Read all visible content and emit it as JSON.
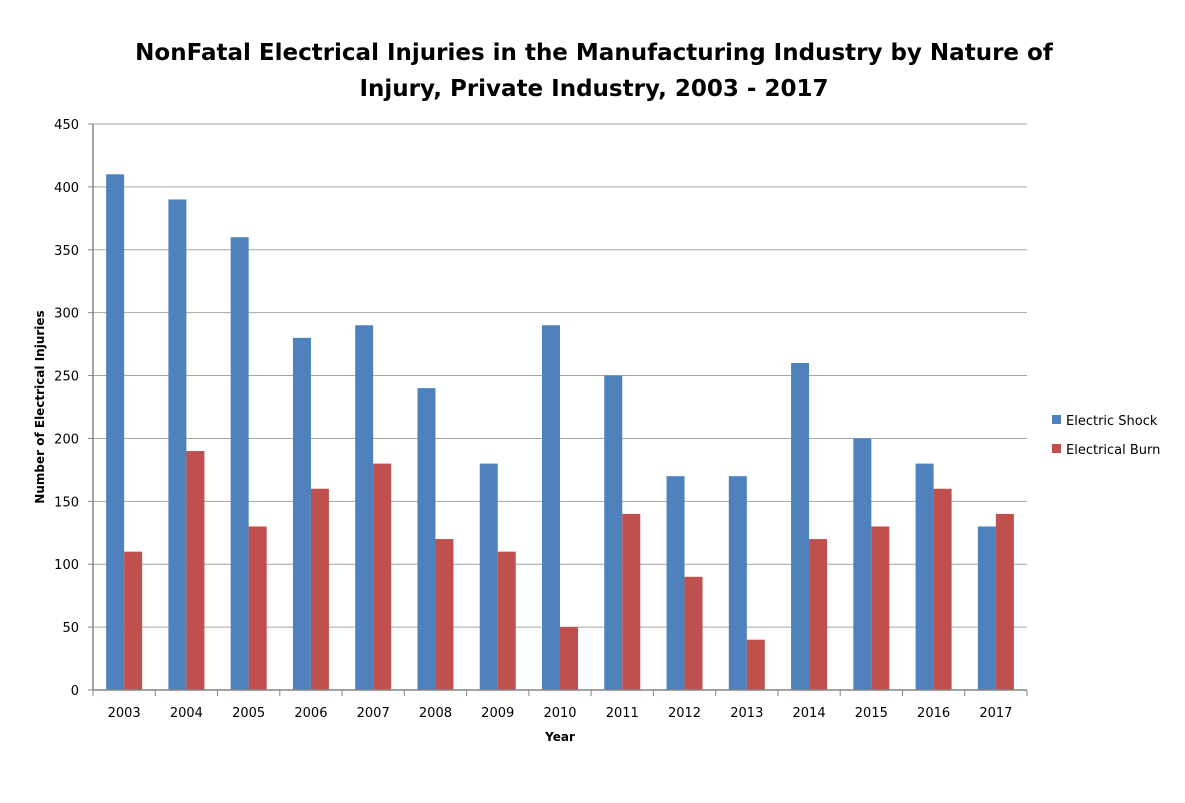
{
  "chart_data": {
    "type": "bar",
    "title": "NonFatal Electrical Injuries in the Manufacturing Industry by Nature of Injury, Private Industry, 2003 - 2017",
    "title_lines": [
      "NonFatal Electrical Injuries in the Manufacturing Industry by Nature of",
      "Injury, Private Industry, 2003 - 2017"
    ],
    "xlabel": "Year",
    "ylabel": "Number of Electrical Injuries",
    "ylim": [
      0,
      450
    ],
    "yticks": [
      0,
      50,
      100,
      150,
      200,
      250,
      300,
      350,
      400,
      450
    ],
    "grid": true,
    "legend_position": "right",
    "categories": [
      "2003",
      "2004",
      "2005",
      "2006",
      "2007",
      "2008",
      "2009",
      "2010",
      "2011",
      "2012",
      "2013",
      "2014",
      "2015",
      "2016",
      "2017"
    ],
    "series": [
      {
        "name": "Electric Shock",
        "color": "#4F81BD",
        "values": [
          410,
          390,
          360,
          280,
          290,
          240,
          180,
          290,
          250,
          170,
          170,
          260,
          200,
          180,
          130
        ]
      },
      {
        "name": "Electrical Burn",
        "color": "#C0504D",
        "values": [
          110,
          190,
          130,
          160,
          180,
          120,
          110,
          50,
          140,
          90,
          40,
          120,
          130,
          160,
          140
        ]
      }
    ]
  }
}
